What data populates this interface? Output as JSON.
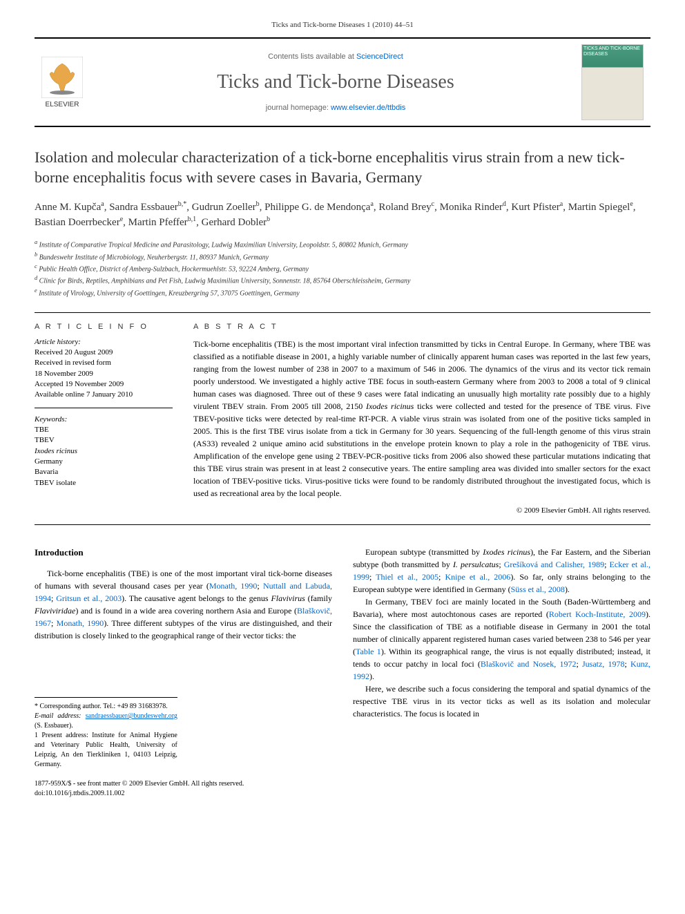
{
  "header": {
    "running_head": "Ticks and Tick-borne Diseases 1 (2010) 44–51"
  },
  "banner": {
    "contents_prefix": "Contents lists available at ",
    "contents_link_text": "ScienceDirect",
    "journal_title": "Ticks and Tick-borne Diseases",
    "homepage_prefix": "journal homepage: ",
    "homepage_link_text": "www.elsevier.de/ttbdis",
    "elsevier_label": "ELSEVIER",
    "cover_title": "TICKS AND TICK-BORNE DISEASES"
  },
  "article": {
    "title": "Isolation and molecular characterization of a tick-borne encephalitis virus strain from a new tick-borne encephalitis focus with severe cases in Bavaria, Germany",
    "authors_html": "Anne M. Kupča<sup>a</sup>, Sandra Essbauer<sup>b,*</sup>, Gudrun Zoeller<sup>b</sup>, Philippe G. de Mendonça<sup>a</sup>, Roland Brey<sup>c</sup>, Monika Rinder<sup>d</sup>, Kurt Pfister<sup>a</sup>, Martin Spiegel<sup>e</sup>, Bastian Doerrbecker<sup>e</sup>, Martin Pfeffer<sup>b,1</sup>, Gerhard Dobler<sup>b</sup>",
    "affiliations": [
      "a Institute of Comparative Tropical Medicine and Parasitology, Ludwig Maximilian University, Leopoldstr. 5, 80802 Munich, Germany",
      "b Bundeswehr Institute of Microbiology, Neuherbergstr. 11, 80937 Munich, Germany",
      "c Public Health Office, District of Amberg-Sulzbach, Hockermuehlstr. 53, 92224 Amberg, Germany",
      "d Clinic for Birds, Reptiles, Amphibians and Pet Fish, Ludwig Maximilian University, Sonnenstr. 18, 85764 Oberschleissheim, Germany",
      "e Institute of Virology, University of Goettingen, Kreuzbergring 57, 37075 Goettingen, Germany"
    ]
  },
  "info": {
    "heading": "A R T I C L E   I N F O",
    "history_label": "Article history:",
    "history": [
      "Received 20 August 2009",
      "Received in revised form",
      "18 November 2009",
      "Accepted 19 November 2009",
      "Available online 7 January 2010"
    ],
    "keywords_label": "Keywords:",
    "keywords": [
      "TBE",
      "TBEV",
      "Ixodes ricinus",
      "Germany",
      "Bavaria",
      "TBEV isolate"
    ]
  },
  "abstract": {
    "heading": "A B S T R A C T",
    "text": "Tick-borne encephalitis (TBE) is the most important viral infection transmitted by ticks in Central Europe. In Germany, where TBE was classified as a notifiable disease in 2001, a highly variable number of clinically apparent human cases was reported in the last few years, ranging from the lowest number of 238 in 2007 to a maximum of 546 in 2006. The dynamics of the virus and its vector tick remain poorly understood. We investigated a highly active TBE focus in south-eastern Germany where from 2003 to 2008 a total of 9 clinical human cases was diagnosed. Three out of these 9 cases were fatal indicating an unusually high mortality rate possibly due to a highly virulent TBEV strain. From 2005 till 2008, 2150 Ixodes ricinus ticks were collected and tested for the presence of TBE virus. Five TBEV-positive ticks were detected by real-time RT-PCR. A viable virus strain was isolated from one of the positive ticks sampled in 2005. This is the first TBE virus isolate from a tick in Germany for 30 years. Sequencing of the full-length genome of this virus strain (AS33) revealed 2 unique amino acid substitutions in the envelope protein known to play a role in the pathogenicity of TBE virus. Amplification of the envelope gene using 2 TBEV-PCR-positive ticks from 2006 also showed these particular mutations indicating that this TBE virus strain was present in at least 2 consecutive years. The entire sampling area was divided into smaller sectors for the exact location of TBEV-positive ticks. Virus-positive ticks were found to be randomly distributed throughout the investigated focus, which is used as recreational area by the local people.",
    "copyright": "© 2009 Elsevier GmbH. All rights reserved."
  },
  "body": {
    "section_heading": "Introduction",
    "col1_p1": "Tick-borne encephalitis (TBE) is one of the most important viral tick-borne diseases of humans with several thousand cases per year (Monath, 1990; Nuttall and Labuda, 1994; Gritsun et al., 2003). The causative agent belongs to the genus Flavivirus (family Flaviviridae) and is found in a wide area covering northern Asia and Europe (Blaškovič, 1967; Monath, 1990). Three different subtypes of the virus are distinguished, and their distribution is closely linked to the geographical range of their vector ticks: the",
    "col2_p1": "European subtype (transmitted by Ixodes ricinus), the Far Eastern, and the Siberian subtype (both transmitted by I. persulcatus; Grešíková and Calisher, 1989; Ecker et al., 1999; Thiel et al., 2005; Knipe et al., 2006). So far, only strains belonging to the European subtype were identified in Germany (Süss et al., 2008).",
    "col2_p2": "In Germany, TBEV foci are mainly located in the South (Baden-Württemberg and Bavaria), where most autochtonous cases are reported (Robert Koch-Institute, 2009). Since the classification of TBE as a notifiable disease in Germany in 2001 the total number of clinically apparent registered human cases varied between 238 to 546 per year (Table 1). Within its geographical range, the virus is not equally distributed; instead, it tends to occur patchy in local foci (Blaškovič and Nosek, 1972; Jusatz, 1978; Kunz, 1992).",
    "col2_p3": "Here, we describe such a focus considering the temporal and spatial dynamics of the respective TBE virus in its vector ticks as well as its isolation and molecular characteristics. The focus is located in"
  },
  "footnotes": {
    "corresponding": "* Corresponding author. Tel.: +49 89 31683978.",
    "email_label": "E-mail address: ",
    "email": "sandraessbauer@bundeswehr.org",
    "email_suffix": " (S. Essbauer).",
    "present_address": "1 Present address: Institute for Animal Hygiene and Veterinary Public Health, University of Leipzig, An den Tierkliniken 1, 04103 Leipzig, Germany."
  },
  "footer": {
    "issn_line": "1877-959X/$ - see front matter © 2009 Elsevier GmbH. All rights reserved.",
    "doi_line": "doi:10.1016/j.ttbdis.2009.11.002"
  },
  "colors": {
    "link": "#0066cc",
    "text": "#000000",
    "muted": "#666666",
    "rule": "#000000"
  }
}
